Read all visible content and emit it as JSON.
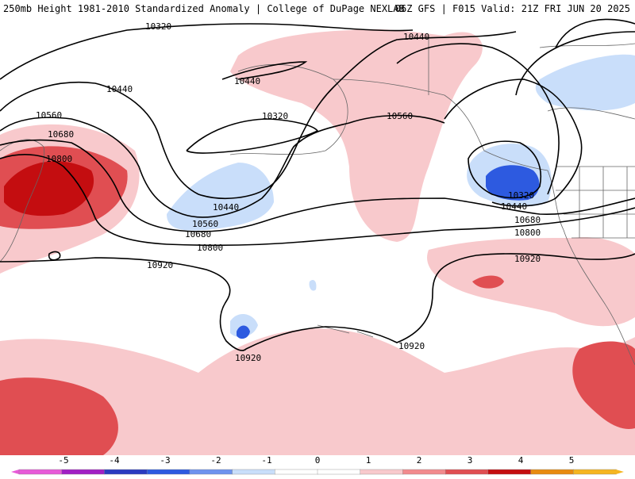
{
  "header": {
    "title": "250mb Height 1981-2010 Standardized Anomaly | College of DuPage NEXLAB",
    "run_info": "06Z GFS | F015 Valid: 21Z FRI JUN 20 2025"
  },
  "contour_labels": [
    {
      "id": "c1",
      "text": "10320"
    },
    {
      "id": "c2",
      "text": "10440"
    },
    {
      "id": "c3",
      "text": "10440"
    },
    {
      "id": "c4",
      "text": "10440"
    },
    {
      "id": "c5",
      "text": "10560"
    },
    {
      "id": "c6",
      "text": "10680"
    },
    {
      "id": "c7",
      "text": "10800"
    },
    {
      "id": "c8",
      "text": "10320"
    },
    {
      "id": "c9",
      "text": "10440"
    },
    {
      "id": "c10",
      "text": "10560"
    },
    {
      "id": "c11",
      "text": "10680"
    },
    {
      "id": "c12",
      "text": "10800"
    },
    {
      "id": "c13",
      "text": "10920"
    },
    {
      "id": "c14",
      "text": "10920"
    },
    {
      "id": "c15",
      "text": "10920"
    },
    {
      "id": "c16",
      "text": "10560"
    },
    {
      "id": "c17",
      "text": "10320"
    },
    {
      "id": "c18",
      "text": "10440"
    },
    {
      "id": "c19",
      "text": "10680"
    },
    {
      "id": "c20",
      "text": "10800"
    },
    {
      "id": "c21",
      "text": "10920"
    }
  ],
  "colorbar": {
    "ticks": [
      "-5",
      "-4",
      "-3",
      "-2",
      "-1",
      "0",
      "1",
      "2",
      "3",
      "4",
      "5"
    ],
    "colors": [
      "#e75ad8",
      "#a11fc4",
      "#2a3bc0",
      "#2d5ae0",
      "#6d93ee",
      "#c9defa",
      "#ffffff",
      "#ffffff",
      "#f8c9cc",
      "#f28a8d",
      "#e04e52",
      "#c40d10",
      "#e88a10",
      "#f5b520"
    ]
  }
}
